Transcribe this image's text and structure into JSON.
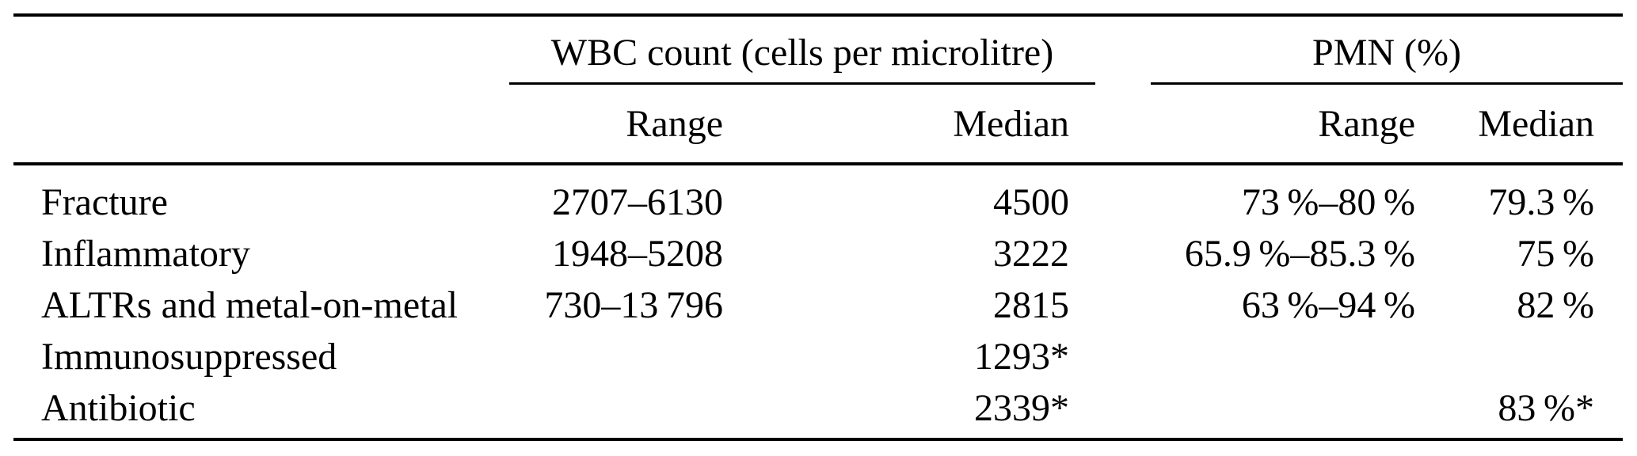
{
  "figure": {
    "background_color": "#ffffff",
    "text_color": "#000000",
    "rule_color": "#000000"
  },
  "table": {
    "column_groups": [
      {
        "label": "WBC count (cells per microlitre)"
      },
      {
        "label": "PMN (%)"
      }
    ],
    "sub_headers": {
      "wbc_range": "Range",
      "wbc_median": "Median",
      "pmn_range": "Range",
      "pmn_median": "Median"
    },
    "rows": [
      {
        "label": "Fracture",
        "wbc_range": "2707–6130",
        "wbc_median": "4500",
        "pmn_range": "73 %–80 %",
        "pmn_median": "79.3 %"
      },
      {
        "label": "Inflammatory",
        "wbc_range": "1948–5208",
        "wbc_median": "3222",
        "pmn_range": "65.9 %–85.3 %",
        "pmn_median": "75 %"
      },
      {
        "label": "ALTRs and metal-on-metal",
        "wbc_range": "730–13 796",
        "wbc_median": "2815",
        "pmn_range": "63 %–94 %",
        "pmn_median": "82 %"
      },
      {
        "label": "Immunosuppressed",
        "wbc_range": "",
        "wbc_median": "1293*",
        "pmn_range": "",
        "pmn_median": ""
      },
      {
        "label": "Antibiotic",
        "wbc_range": "",
        "wbc_median": "2339*",
        "pmn_range": "",
        "pmn_median": "83 %*"
      }
    ]
  }
}
